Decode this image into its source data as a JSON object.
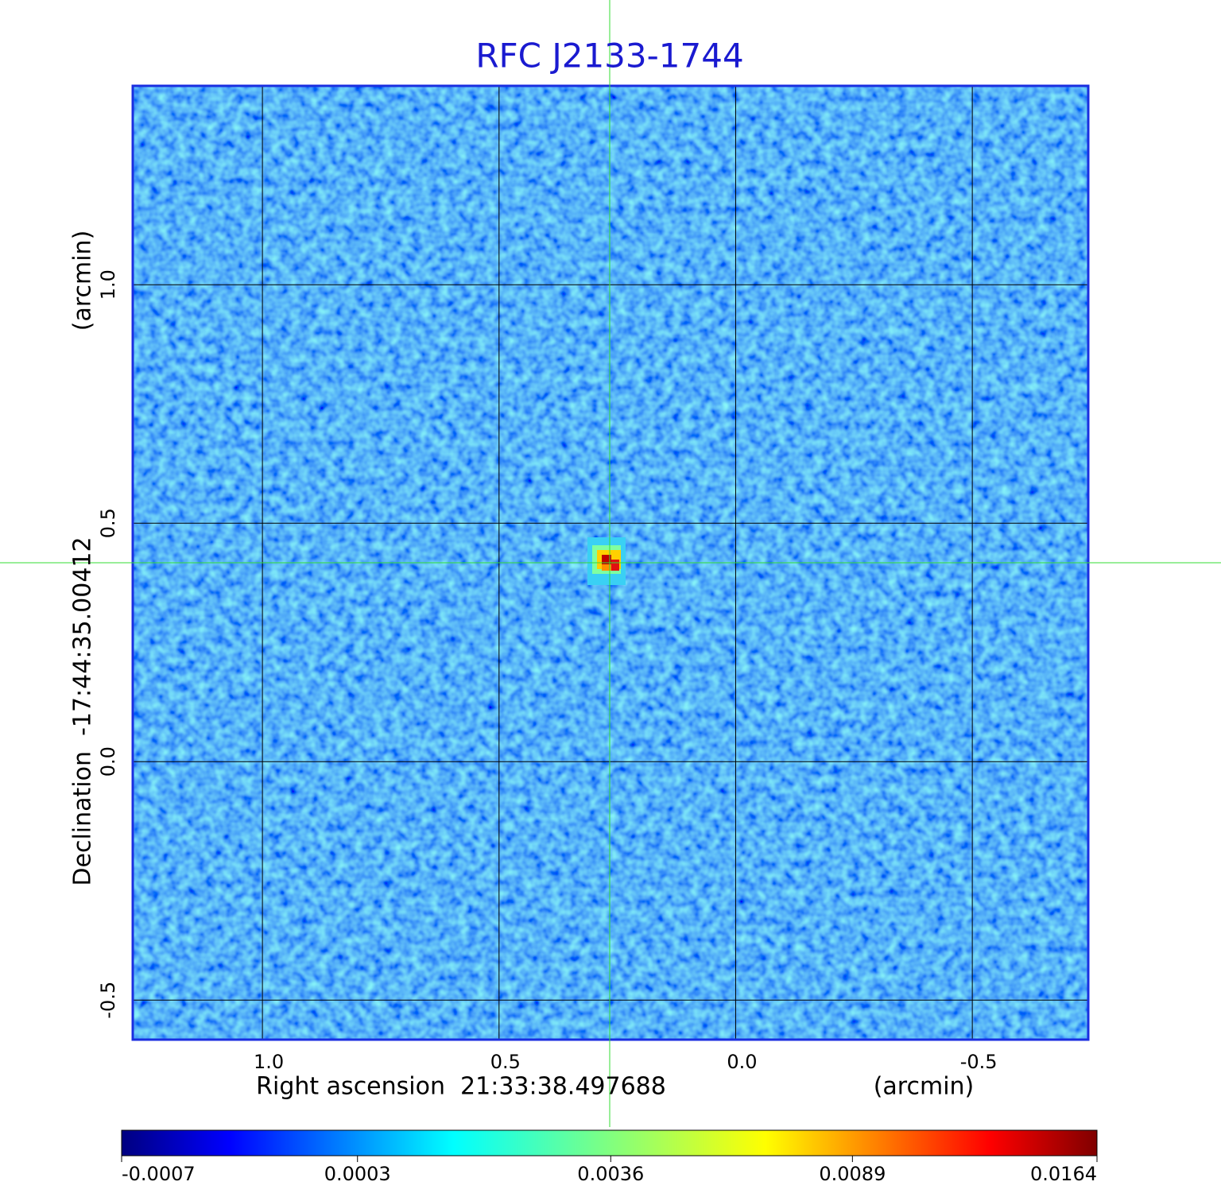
{
  "chart_data": {
    "type": "image",
    "title": "RFC J2133-1744",
    "x_label": "Right ascension  21:33:38.497688",
    "x_unit": "(arcmin)",
    "y_label": "Declination  -17:44:35.00412",
    "y_unit": "(arcmin)",
    "xlim": [
      1.274,
      -0.745
    ],
    "ylim": [
      -0.583,
      1.417
    ],
    "xticks": [
      {
        "value": 1,
        "label": "1.0"
      },
      0.5,
      {
        "value": 0,
        "label": "0.0"
      },
      -0.5
    ],
    "yticks": [
      {
        "value": -0.5,
        "label": "-0.5"
      },
      {
        "value": 0,
        "label": "0.0"
      },
      0.5,
      {
        "value": 1,
        "label": "1.0"
      }
    ],
    "grid": true,
    "colorbar": {
      "colormap": "jet",
      "scale": "sqrt",
      "lim": [
        -0.0007,
        0.0164
      ],
      "ticks": [
        -0.0007,
        0.0003,
        0.0036,
        0.0089,
        0.0164
      ]
    }
  }
}
